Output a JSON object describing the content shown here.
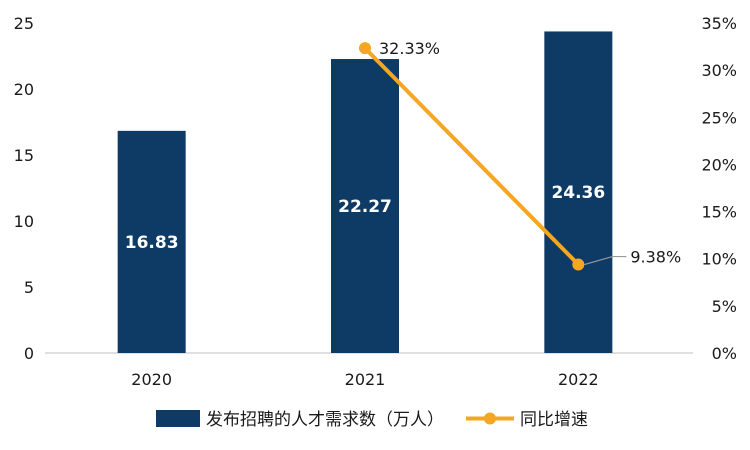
{
  "chart_data": {
    "type": "bar",
    "categories": [
      "2020",
      "2021",
      "2022"
    ],
    "series": [
      {
        "name": "发布招聘的人才需求数（万人）",
        "type": "bar",
        "axis": "left",
        "color": "#0e3a66",
        "values": [
          16.83,
          22.27,
          24.36
        ],
        "labels": [
          "16.83",
          "22.27",
          "24.36"
        ]
      },
      {
        "name": "同比增速",
        "type": "line",
        "axis": "right",
        "color": "#f5a623",
        "x": [
          "2021",
          "2022"
        ],
        "values": [
          32.33,
          9.38
        ],
        "labels": [
          "32.33%",
          "9.38%"
        ]
      }
    ],
    "y_left": {
      "min": 0,
      "max": 25,
      "ticks": [
        "0",
        "5",
        "10",
        "15",
        "20",
        "25"
      ]
    },
    "y_right": {
      "min": 0,
      "max": 35,
      "ticks": [
        "0%",
        "5%",
        "10%",
        "15%",
        "20%",
        "25%",
        "30%",
        "35%"
      ]
    },
    "legend_position": "bottom",
    "grid": false
  }
}
